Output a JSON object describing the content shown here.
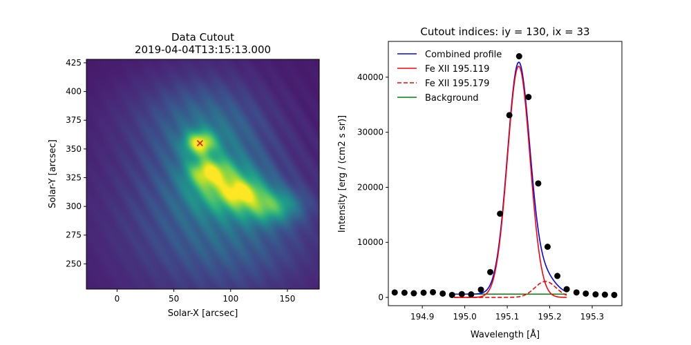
{
  "chart_data": [
    {
      "type": "heatmap",
      "title_line1": "Data Cutout",
      "title_line2": "2019-04-04T13:15:13.000",
      "xlabel": "Solar-X [arcsec]",
      "ylabel": "Solar-Y [arcsec]",
      "xlim": [
        -27,
        178
      ],
      "ylim": [
        228,
        428
      ],
      "xticks": [
        0,
        50,
        100,
        150
      ],
      "yticks": [
        250,
        275,
        300,
        325,
        350,
        375,
        400,
        425
      ],
      "colormap": "viridis",
      "marker": {
        "x": 73,
        "y": 355,
        "symbol": "x",
        "color": "#e8291f"
      },
      "blobs": [
        {
          "x": 73,
          "y": 355,
          "sx": 9,
          "sy": 7,
          "w": 0.62
        },
        {
          "x": 80,
          "y": 330,
          "sx": 12,
          "sy": 8,
          "w": 0.45
        },
        {
          "x": 100,
          "y": 315,
          "sx": 22,
          "sy": 14,
          "w": 0.42
        },
        {
          "x": 110,
          "y": 312,
          "sx": 10,
          "sy": 7,
          "w": 0.3
        },
        {
          "x": 135,
          "y": 300,
          "sx": 18,
          "sy": 10,
          "w": 0.45
        },
        {
          "x": 85,
          "y": 345,
          "sx": 28,
          "sy": 35,
          "w": 0.22
        },
        {
          "x": 80,
          "y": 300,
          "sx": 60,
          "sy": 55,
          "w": 0.18
        },
        {
          "x": 110,
          "y": 270,
          "sx": 45,
          "sy": 30,
          "w": 0.1
        },
        {
          "x": 60,
          "y": 380,
          "sx": 40,
          "sy": 25,
          "w": 0.1
        }
      ]
    },
    {
      "type": "line",
      "title": "Cutout indices: iy = 130, ix = 33",
      "xlabel": "Wavelength [Å]",
      "ylabel": "Intensity [erg / (cm2 s sr)]",
      "xlim": [
        194.82,
        195.37
      ],
      "ylim": [
        -1500,
        46500
      ],
      "xticks": [
        194.9,
        195.0,
        195.1,
        195.2,
        195.3
      ],
      "xtick_labels": [
        "194.9",
        "195.0",
        "195.1",
        "195.2",
        "195.3"
      ],
      "yticks": [
        0,
        10000,
        20000,
        30000,
        40000
      ],
      "ytick_labels": [
        "0",
        "10000",
        "20000",
        "30000",
        "40000"
      ],
      "legend_position": "upper-left",
      "fit": {
        "range": [
          194.975,
          195.24
        ],
        "background": 600,
        "fe1": {
          "amp": 42000,
          "center": 195.127,
          "sigma": 0.0265
        },
        "fe2": {
          "amp": 2900,
          "center": 195.19,
          "sigma": 0.025
        }
      },
      "series": [
        {
          "name": "Combined profile",
          "color": "#0000ff",
          "style": "solid"
        },
        {
          "name": "Fe XII 195.119",
          "color": "#ff0000",
          "style": "solid"
        },
        {
          "name": "Fe XII 195.179",
          "color": "#ff0000",
          "style": "dashed"
        },
        {
          "name": "Background",
          "color": "#008000",
          "style": "solid"
        }
      ],
      "data_points": {
        "x": [
          194.835,
          194.858,
          194.88,
          194.903,
          194.925,
          194.948,
          194.97,
          194.993,
          195.015,
          195.038,
          195.06,
          195.083,
          195.105,
          195.128,
          195.15,
          195.173,
          195.195,
          195.218,
          195.24,
          195.263,
          195.285,
          195.308,
          195.33,
          195.352
        ],
        "y": [
          900,
          850,
          750,
          850,
          950,
          700,
          450,
          600,
          550,
          1400,
          4600,
          15200,
          33100,
          43800,
          36400,
          20700,
          9200,
          3900,
          1500,
          900,
          700,
          550,
          500,
          450
        ]
      }
    }
  ]
}
